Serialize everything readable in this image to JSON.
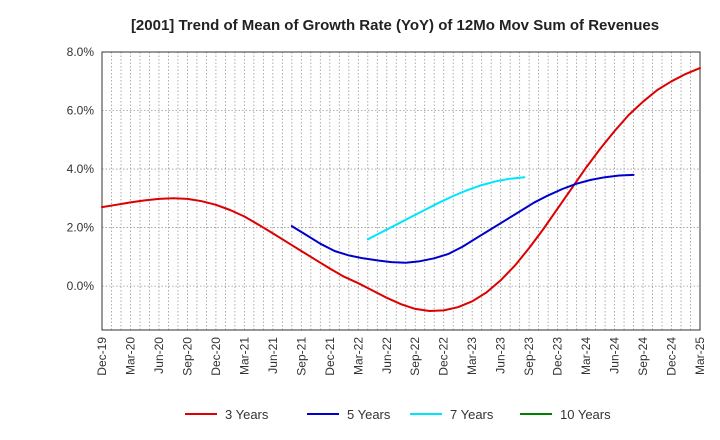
{
  "chart_data": {
    "type": "line",
    "title": "[2001]  Trend of Mean of Growth Rate (YoY) of 12Mo Mov Sum of Revenues",
    "xlabel": "",
    "ylabel": "",
    "ylim": [
      -1.5,
      8.0
    ],
    "yticks": [
      "8.0%",
      "6.0%",
      "4.0%",
      "2.0%",
      "0.0%"
    ],
    "ytick_values": [
      8,
      6,
      4,
      2,
      0
    ],
    "x_tick_labels": [
      "Dec-19",
      "Mar-20",
      "Jun-20",
      "Sep-20",
      "Dec-20",
      "Mar-21",
      "Jun-21",
      "Sep-21",
      "Dec-21",
      "Mar-22",
      "Jun-22",
      "Sep-22",
      "Dec-22",
      "Mar-23",
      "Jun-23",
      "Sep-23",
      "Dec-23",
      "Mar-24",
      "Jun-24",
      "Sep-24",
      "Dec-24",
      "Mar-25"
    ],
    "grid": true,
    "legend_position": "bottom",
    "series": [
      {
        "name": "3 Years",
        "color": "#dd0000",
        "start_index": 0,
        "values": [
          2.7,
          2.78,
          2.86,
          2.93,
          2.98,
          3.0,
          2.98,
          2.9,
          2.78,
          2.6,
          2.38,
          2.1,
          1.8,
          1.5,
          1.2,
          0.9,
          0.6,
          0.32,
          0.1,
          -0.15,
          -0.4,
          -0.62,
          -0.78,
          -0.85,
          -0.83,
          -0.72,
          -0.52,
          -0.22,
          0.2,
          0.7,
          1.3,
          1.95,
          2.65,
          3.35,
          4.05,
          4.7,
          5.3,
          5.85,
          6.3,
          6.7,
          7.0,
          7.25,
          7.45
        ]
      },
      {
        "name": "5 Years",
        "color": "#0000cc",
        "start_index": 20,
        "values": [
          2.05,
          1.75,
          1.45,
          1.2,
          1.05,
          0.95,
          0.88,
          0.82,
          0.8,
          0.85,
          0.95,
          1.1,
          1.35,
          1.65,
          1.95,
          2.25,
          2.55,
          2.85,
          3.1,
          3.32,
          3.5,
          3.63,
          3.72,
          3.78,
          3.8
        ]
      },
      {
        "name": "7 Years",
        "color": "#00e5ff",
        "start_index": 28,
        "values": [
          1.6,
          1.85,
          2.1,
          2.35,
          2.6,
          2.85,
          3.08,
          3.28,
          3.45,
          3.58,
          3.67,
          3.72
        ]
      },
      {
        "name": "10 Years",
        "color": "#008000",
        "start_index": 0,
        "values": []
      }
    ]
  }
}
